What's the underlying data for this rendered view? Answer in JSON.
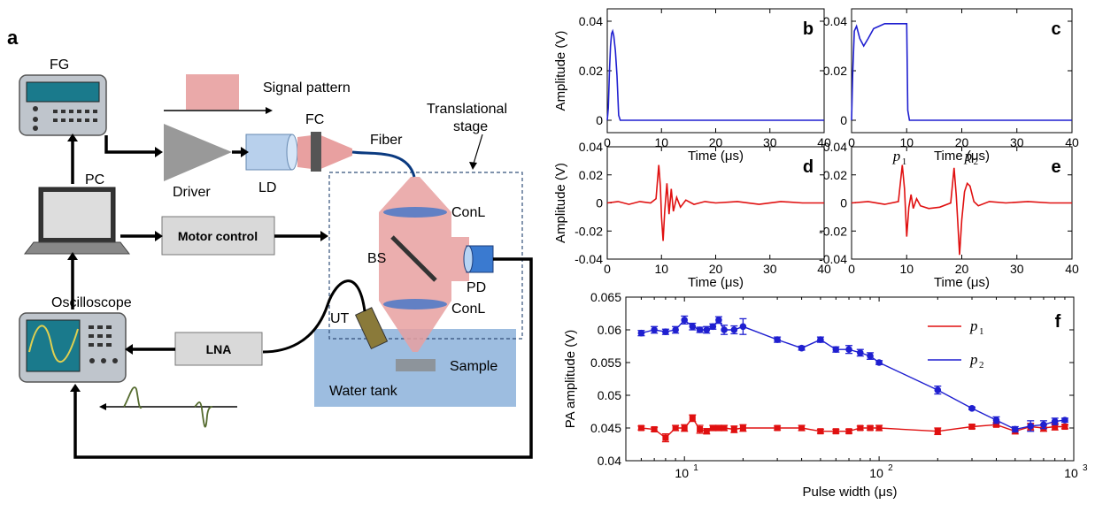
{
  "diagram": {
    "panel_label": "a",
    "fg": "FG",
    "signal_pattern": "Signal pattern",
    "fc": "FC",
    "fiber": "Fiber",
    "translational_stage_line1": "Translational",
    "translational_stage_line2": "stage",
    "driver": "Driver",
    "ld": "LD",
    "pc": "PC",
    "motor_control": "Motor control",
    "conl_top": "ConL",
    "conl_bottom": "ConL",
    "bs": "BS",
    "pd": "PD",
    "ut": "UT",
    "oscilloscope": "Oscilloscope",
    "lna": "LNA",
    "sample": "Sample",
    "water_tank": "Water tank"
  },
  "colors": {
    "blue_trace": "#1f1fd0",
    "red_trace": "#e01010",
    "beam": "#e8a0a0",
    "tank": "#9dbde0",
    "box_fill": "#d9d9d9"
  },
  "chart_data": [
    {
      "id": "b",
      "type": "line",
      "panel_label": "b",
      "ylabel": "Amplitude (V)",
      "xlabel": "Time (μs)",
      "xlim": [
        0,
        40
      ],
      "ylim": [
        -0.005,
        0.045
      ],
      "xticks": [
        0,
        10,
        20,
        30,
        40
      ],
      "yticks": [
        0,
        0.02,
        0.04
      ],
      "ytick_labels": [
        "0",
        "0.02",
        "0.04"
      ],
      "color": "#1f1fd0",
      "x": [
        0,
        0.2,
        0.4,
        0.6,
        0.8,
        1.0,
        1.2,
        1.5,
        1.8,
        2.1,
        2.4,
        5,
        40
      ],
      "y": [
        0,
        0.005,
        0.02,
        0.03,
        0.035,
        0.036,
        0.034,
        0.028,
        0.018,
        0.002,
        0,
        0,
        0
      ]
    },
    {
      "id": "c",
      "type": "line",
      "panel_label": "c",
      "ylabel": "",
      "xlabel": "Time (μs)",
      "xlim": [
        0,
        40
      ],
      "ylim": [
        -0.005,
        0.045
      ],
      "xticks": [
        0,
        10,
        20,
        30,
        40
      ],
      "yticks": [
        0,
        0.02,
        0.04
      ],
      "ytick_labels": [
        "0",
        "0.02",
        "0.04"
      ],
      "color": "#1f1fd0",
      "x": [
        0,
        0.2,
        0.5,
        0.9,
        1.5,
        2.2,
        3,
        4,
        5,
        6,
        7,
        8,
        9,
        10,
        10.2,
        10.5,
        12,
        40
      ],
      "y": [
        0,
        0.018,
        0.036,
        0.038,
        0.033,
        0.03,
        0.033,
        0.037,
        0.038,
        0.039,
        0.039,
        0.039,
        0.039,
        0.039,
        0.004,
        0,
        0,
        0
      ]
    },
    {
      "id": "d",
      "type": "line",
      "panel_label": "d",
      "ylabel": "Amplitude (V)",
      "xlabel": "Time (μs)",
      "xlim": [
        0,
        40
      ],
      "ylim": [
        -0.04,
        0.04
      ],
      "xticks": [
        0,
        10,
        20,
        30,
        40
      ],
      "yticks": [
        -0.04,
        -0.02,
        0,
        0.02,
        0.04
      ],
      "ytick_labels": [
        "-0.04",
        "-0.02",
        "0",
        "0.02",
        "0.04"
      ],
      "color": "#e01010",
      "x": [
        0,
        2,
        4,
        6,
        8,
        9,
        9.5,
        9.8,
        10,
        10.3,
        10.6,
        11,
        11.4,
        11.8,
        12.2,
        12.8,
        13.5,
        14.5,
        16,
        18,
        20,
        24,
        28,
        32,
        36,
        40
      ],
      "y": [
        0,
        0.001,
        -0.001,
        0.001,
        0,
        0.003,
        0.027,
        0.012,
        -0.01,
        -0.027,
        -0.006,
        0.014,
        -0.008,
        0.01,
        -0.006,
        0.004,
        -0.003,
        0.002,
        -0.001,
        0.001,
        0,
        0.001,
        -0.001,
        0.001,
        0,
        0
      ]
    },
    {
      "id": "e",
      "type": "line",
      "panel_label": "e",
      "ylabel": "",
      "xlabel": "Time (μs)",
      "xlim": [
        0,
        40
      ],
      "ylim": [
        -0.04,
        0.04
      ],
      "xticks": [
        0,
        10,
        20,
        30,
        40
      ],
      "yticks": [
        -0.04,
        -0.02,
        0,
        0.02,
        0.04
      ],
      "ytick_labels": [
        "-0.04",
        "-0.02",
        "0",
        "0.02",
        "0.04"
      ],
      "color": "#e01010",
      "annotations": [
        {
          "text": "p",
          "sub": "1",
          "x": 7.5,
          "y": 0.03
        },
        {
          "text": "p",
          "sub": "2",
          "x": 20.5,
          "y": 0.03
        }
      ],
      "x": [
        0,
        3,
        6,
        8.5,
        9.2,
        9.6,
        10,
        10.4,
        10.8,
        11.2,
        11.8,
        12.5,
        14,
        16,
        18,
        18.6,
        19,
        19.3,
        19.6,
        20,
        20.5,
        21,
        21.5,
        22.2,
        23,
        25,
        28,
        32,
        36,
        40
      ],
      "y": [
        0,
        0.001,
        -0.001,
        0.001,
        0.027,
        0.01,
        -0.024,
        -0.003,
        0.006,
        -0.004,
        0.003,
        -0.002,
        -0.004,
        -0.003,
        0,
        0.025,
        0.005,
        -0.015,
        -0.037,
        -0.012,
        0.008,
        0.014,
        0.012,
        0.001,
        -0.002,
        0.001,
        0,
        0.001,
        0,
        0
      ]
    },
    {
      "id": "f",
      "type": "line",
      "panel_label": "f",
      "ylabel": "PA amplitude (V)",
      "xlabel": "Pulse width (μs)",
      "xscale": "log",
      "xlim": [
        5,
        1000
      ],
      "ylim": [
        0.04,
        0.065
      ],
      "xticks": [
        10,
        100,
        1000
      ],
      "xtick_labels": [
        {
          "base": "10",
          "exp": "1"
        },
        {
          "base": "10",
          "exp": "2"
        },
        {
          "base": "10",
          "exp": "3"
        }
      ],
      "yticks": [
        0.04,
        0.045,
        0.05,
        0.055,
        0.06,
        0.065
      ],
      "ytick_labels": [
        "0.04",
        "0.045",
        "0.05",
        "0.055",
        "0.06",
        "0.065"
      ],
      "legend_position": "top-right",
      "series": [
        {
          "name": "p",
          "name_sub": "1",
          "color": "#e01010",
          "marker": "square",
          "x": [
            6,
            7,
            8,
            9,
            10,
            11,
            12,
            13,
            14,
            15,
            16,
            18,
            20,
            30,
            40,
            50,
            60,
            70,
            80,
            90,
            100,
            200,
            300,
            400,
            500,
            600,
            700,
            800,
            900
          ],
          "y": [
            0.045,
            0.0448,
            0.0435,
            0.045,
            0.045,
            0.0465,
            0.0448,
            0.0445,
            0.045,
            0.045,
            0.045,
            0.0448,
            0.045,
            0.045,
            0.045,
            0.0445,
            0.0445,
            0.0445,
            0.045,
            0.045,
            0.045,
            0.0445,
            0.0452,
            0.0455,
            0.0445,
            0.0452,
            0.045,
            0.0452,
            0.0452
          ],
          "err": [
            0.0003,
            0.0003,
            0.0006,
            0.0004,
            0.0005,
            0.0005,
            0.0006,
            0.0004,
            0.0004,
            0.0004,
            0.0004,
            0.0005,
            0.0005,
            0.0003,
            0.0004,
            0.0003,
            0.0003,
            0.0003,
            0.0003,
            0.0003,
            0.0004,
            0.0005,
            0.0003,
            0.0003,
            0.0004,
            0.0005,
            0.0005,
            0.0005,
            0.0003
          ]
        },
        {
          "name": "p",
          "name_sub": "2",
          "color": "#1f1fd0",
          "marker": "circle",
          "x": [
            6,
            7,
            8,
            9,
            10,
            11,
            12,
            13,
            14,
            15,
            16,
            18,
            20,
            30,
            40,
            50,
            60,
            70,
            80,
            90,
            100,
            200,
            300,
            400,
            500,
            600,
            700,
            800,
            900
          ],
          "y": [
            0.0595,
            0.06,
            0.0597,
            0.06,
            0.0615,
            0.0605,
            0.06,
            0.06,
            0.0605,
            0.0615,
            0.06,
            0.06,
            0.0605,
            0.0585,
            0.0572,
            0.0585,
            0.057,
            0.057,
            0.0565,
            0.056,
            0.055,
            0.0508,
            0.048,
            0.0462,
            0.0448,
            0.0453,
            0.0455,
            0.046,
            0.0462
          ],
          "err": [
            0.0004,
            0.0005,
            0.0004,
            0.0005,
            0.0006,
            0.0005,
            0.0004,
            0.0005,
            0.0004,
            0.0005,
            0.0007,
            0.0006,
            0.0012,
            0.0004,
            0.0003,
            0.0004,
            0.0004,
            0.0006,
            0.0005,
            0.0005,
            0.0003,
            0.0006,
            0.0002,
            0.0005,
            0.0004,
            0.0008,
            0.0006,
            0.0005,
            0.0003
          ]
        }
      ]
    }
  ]
}
